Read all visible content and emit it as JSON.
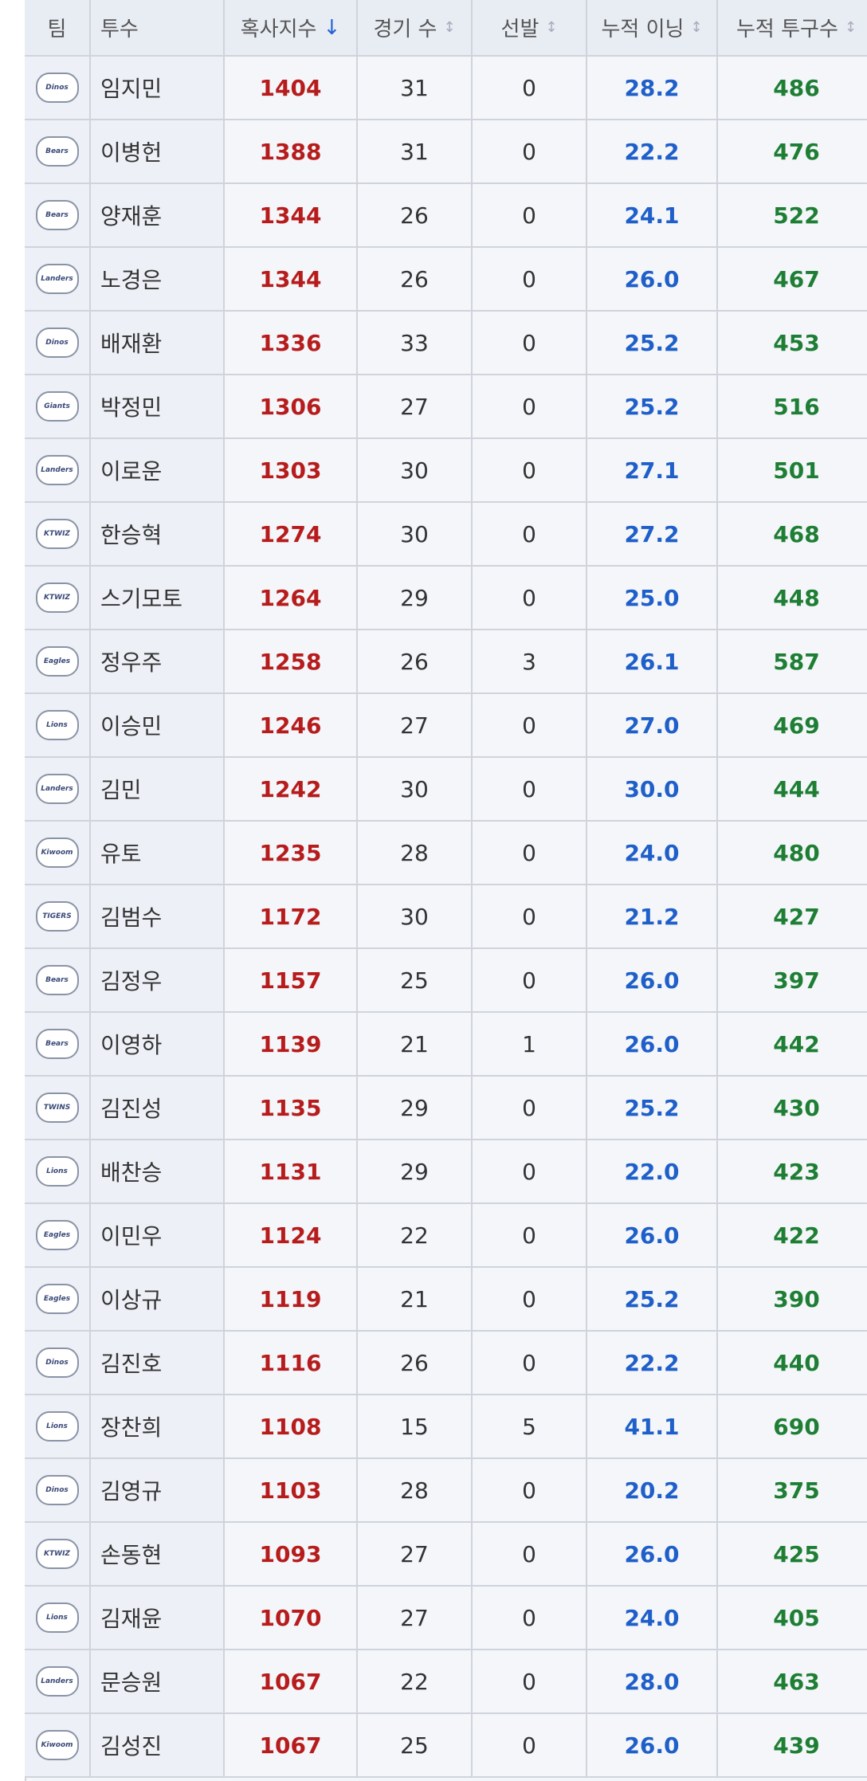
{
  "table": {
    "columns": [
      "팀",
      "투수",
      "혹사지수",
      "경기 수",
      "선발",
      "누적 이닝",
      "누적 투구수"
    ],
    "rows": [
      [
        "Dinos",
        "임지민",
        1404,
        31,
        0,
        "28.2",
        486
      ],
      [
        "Bears",
        "이병헌",
        1388,
        31,
        0,
        "22.2",
        476
      ],
      [
        "Bears",
        "양재훈",
        1344,
        26,
        0,
        "24.1",
        522
      ],
      [
        "Landers",
        "노경은",
        1344,
        26,
        0,
        "26.0",
        467
      ],
      [
        "Dinos",
        "배재환",
        1336,
        33,
        0,
        "25.2",
        453
      ],
      [
        "Giants",
        "박정민",
        1306,
        27,
        0,
        "25.2",
        516
      ],
      [
        "Landers",
        "이로운",
        1303,
        30,
        0,
        "27.1",
        501
      ],
      [
        "KTWIZ",
        "한승혁",
        1274,
        30,
        0,
        "27.2",
        468
      ],
      [
        "KTWIZ",
        "스기모토",
        1264,
        29,
        0,
        "25.0",
        448
      ],
      [
        "Eagles",
        "정우주",
        1258,
        26,
        3,
        "26.1",
        587
      ],
      [
        "Lions",
        "이승민",
        1246,
        27,
        0,
        "27.0",
        469
      ],
      [
        "Landers",
        "김민",
        1242,
        30,
        0,
        "30.0",
        444
      ],
      [
        "Kiwoom",
        "유토",
        1235,
        28,
        0,
        "24.0",
        480
      ],
      [
        "TIGERS",
        "김범수",
        1172,
        30,
        0,
        "21.2",
        427
      ],
      [
        "Bears",
        "김정우",
        1157,
        25,
        0,
        "26.0",
        397
      ],
      [
        "Bears",
        "이영하",
        1139,
        21,
        1,
        "26.0",
        442
      ],
      [
        "TWINS",
        "김진성",
        1135,
        29,
        0,
        "25.2",
        430
      ],
      [
        "Lions",
        "배찬승",
        1131,
        29,
        0,
        "22.0",
        423
      ],
      [
        "Eagles",
        "이민우",
        1124,
        22,
        0,
        "26.0",
        422
      ],
      [
        "Eagles",
        "이상규",
        1119,
        21,
        0,
        "25.2",
        390
      ],
      [
        "Dinos",
        "김진호",
        1116,
        26,
        0,
        "22.2",
        440
      ],
      [
        "Lions",
        "장찬희",
        1108,
        15,
        5,
        "41.1",
        690
      ],
      [
        "Dinos",
        "김영규",
        1103,
        28,
        0,
        "20.2",
        375
      ],
      [
        "KTWIZ",
        "손동현",
        1093,
        27,
        0,
        "26.0",
        425
      ],
      [
        "Lions",
        "김재윤",
        1070,
        27,
        0,
        "24.0",
        405
      ],
      [
        "Landers",
        "문승원",
        1067,
        22,
        0,
        "28.0",
        463
      ],
      [
        "Kiwoom",
        "김성진",
        1067,
        25,
        0,
        "26.0",
        439
      ]
    ]
  }
}
